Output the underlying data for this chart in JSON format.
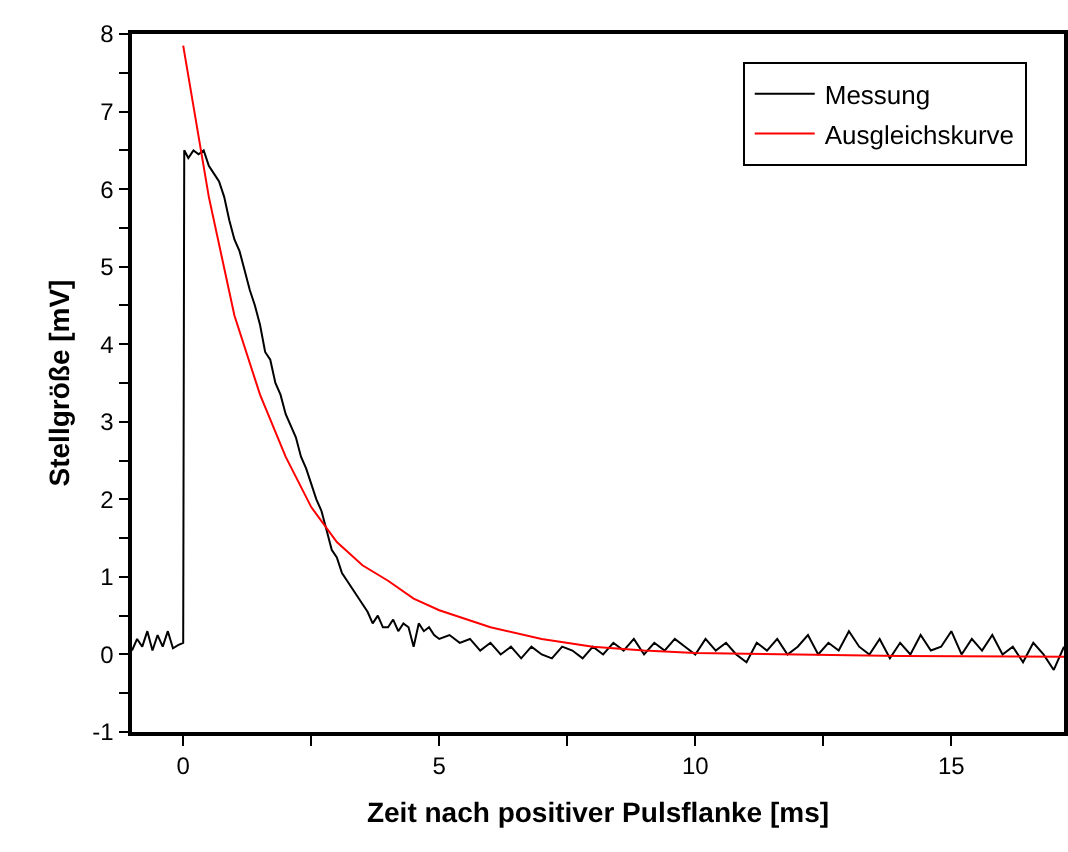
{
  "chart_data": {
    "type": "line",
    "xlabel": "Zeit nach positiver Pulsflanke [ms]",
    "ylabel": "Stellgröße [mV]",
    "xlim": [
      -1.0,
      17.2
    ],
    "xticks": [
      0,
      {
        "value": 2.5,
        "label": null
      },
      5,
      {
        "value": 7.5,
        "label": null
      },
      10,
      {
        "value": 12.5,
        "label": null
      },
      15
    ],
    "ylim": [
      -1,
      8
    ],
    "yticks": [
      -1,
      {
        "value": -0.5,
        "label": null
      },
      0,
      {
        "value": 0.5,
        "label": null
      },
      1,
      {
        "value": 1.5,
        "label": null
      },
      2,
      {
        "value": 2.5,
        "label": null
      },
      3,
      {
        "value": 3.5,
        "label": null
      },
      4,
      {
        "value": 4.5,
        "label": null
      },
      5,
      {
        "value": 5.5,
        "label": null
      },
      6,
      {
        "value": 6.5,
        "label": null
      },
      7,
      {
        "value": 7.5,
        "label": null
      },
      8
    ],
    "grid": false,
    "legend": "top right",
    "line_style": "solid",
    "marker": "none",
    "series": [
      {
        "name": "Messung",
        "color": "#000000",
        "x": [
          -1.0,
          -0.9,
          -0.8,
          -0.7,
          -0.6,
          -0.5,
          -0.4,
          -0.3,
          -0.2,
          -0.1,
          0.0,
          0.02,
          0.1,
          0.2,
          0.3,
          0.4,
          0.5,
          0.6,
          0.7,
          0.8,
          0.9,
          1.0,
          1.1,
          1.2,
          1.3,
          1.4,
          1.5,
          1.6,
          1.7,
          1.8,
          1.9,
          2.0,
          2.1,
          2.2,
          2.3,
          2.4,
          2.5,
          2.6,
          2.7,
          2.8,
          2.9,
          3.0,
          3.1,
          3.2,
          3.3,
          3.4,
          3.5,
          3.6,
          3.7,
          3.8,
          3.9,
          4.0,
          4.1,
          4.2,
          4.3,
          4.4,
          4.5,
          4.6,
          4.7,
          4.8,
          4.9,
          5.0,
          5.2,
          5.4,
          5.6,
          5.8,
          6.0,
          6.2,
          6.4,
          6.6,
          6.8,
          7.0,
          7.2,
          7.4,
          7.6,
          7.8,
          8.0,
          8.2,
          8.4,
          8.6,
          8.8,
          9.0,
          9.2,
          9.4,
          9.6,
          9.8,
          10.0,
          10.2,
          10.4,
          10.6,
          10.8,
          11.0,
          11.2,
          11.4,
          11.6,
          11.8,
          12.0,
          12.2,
          12.4,
          12.6,
          12.8,
          13.0,
          13.2,
          13.4,
          13.6,
          13.8,
          14.0,
          14.2,
          14.4,
          14.6,
          14.8,
          15.0,
          15.2,
          15.4,
          15.6,
          15.8,
          16.0,
          16.2,
          16.4,
          16.6,
          16.8,
          17.0,
          17.2
        ],
        "values": [
          0.05,
          0.2,
          0.1,
          0.3,
          0.05,
          0.25,
          0.1,
          0.3,
          0.08,
          0.12,
          0.15,
          6.5,
          6.4,
          6.5,
          6.45,
          6.5,
          6.3,
          6.2,
          6.1,
          5.9,
          5.6,
          5.35,
          5.2,
          4.95,
          4.7,
          4.5,
          4.25,
          3.9,
          3.8,
          3.5,
          3.35,
          3.1,
          2.95,
          2.8,
          2.55,
          2.4,
          2.2,
          2.0,
          1.85,
          1.6,
          1.35,
          1.25,
          1.05,
          0.95,
          0.85,
          0.75,
          0.65,
          0.55,
          0.4,
          0.5,
          0.35,
          0.35,
          0.45,
          0.3,
          0.4,
          0.35,
          0.1,
          0.4,
          0.3,
          0.35,
          0.25,
          0.2,
          0.25,
          0.15,
          0.2,
          0.05,
          0.15,
          0.0,
          0.1,
          -0.05,
          0.1,
          0.0,
          -0.05,
          0.1,
          0.05,
          -0.05,
          0.1,
          0.0,
          0.15,
          0.05,
          0.2,
          0.0,
          0.15,
          0.05,
          0.2,
          0.1,
          0.0,
          0.2,
          0.05,
          0.15,
          0.0,
          -0.1,
          0.15,
          0.05,
          0.2,
          0.0,
          0.1,
          0.25,
          0.0,
          0.15,
          0.05,
          0.3,
          0.1,
          0.0,
          0.2,
          -0.05,
          0.15,
          0.0,
          0.25,
          0.05,
          0.1,
          0.3,
          0.0,
          0.2,
          0.05,
          0.25,
          0.0,
          0.1,
          -0.1,
          0.15,
          0.0,
          -0.2,
          0.1
        ]
      },
      {
        "name": "Ausgleichskurve",
        "color": "#ff0000",
        "x": [
          0,
          0.5,
          1,
          1.5,
          2,
          2.5,
          3,
          3.5,
          4,
          4.5,
          5,
          6,
          7,
          8,
          9,
          10,
          12,
          14,
          17.2
        ],
        "values": [
          7.85,
          5.9,
          4.37,
          3.35,
          2.55,
          1.9,
          1.45,
          1.15,
          0.95,
          0.72,
          0.57,
          0.35,
          0.2,
          0.1,
          0.05,
          0.02,
          0.0,
          -0.02,
          -0.03
        ]
      }
    ]
  }
}
